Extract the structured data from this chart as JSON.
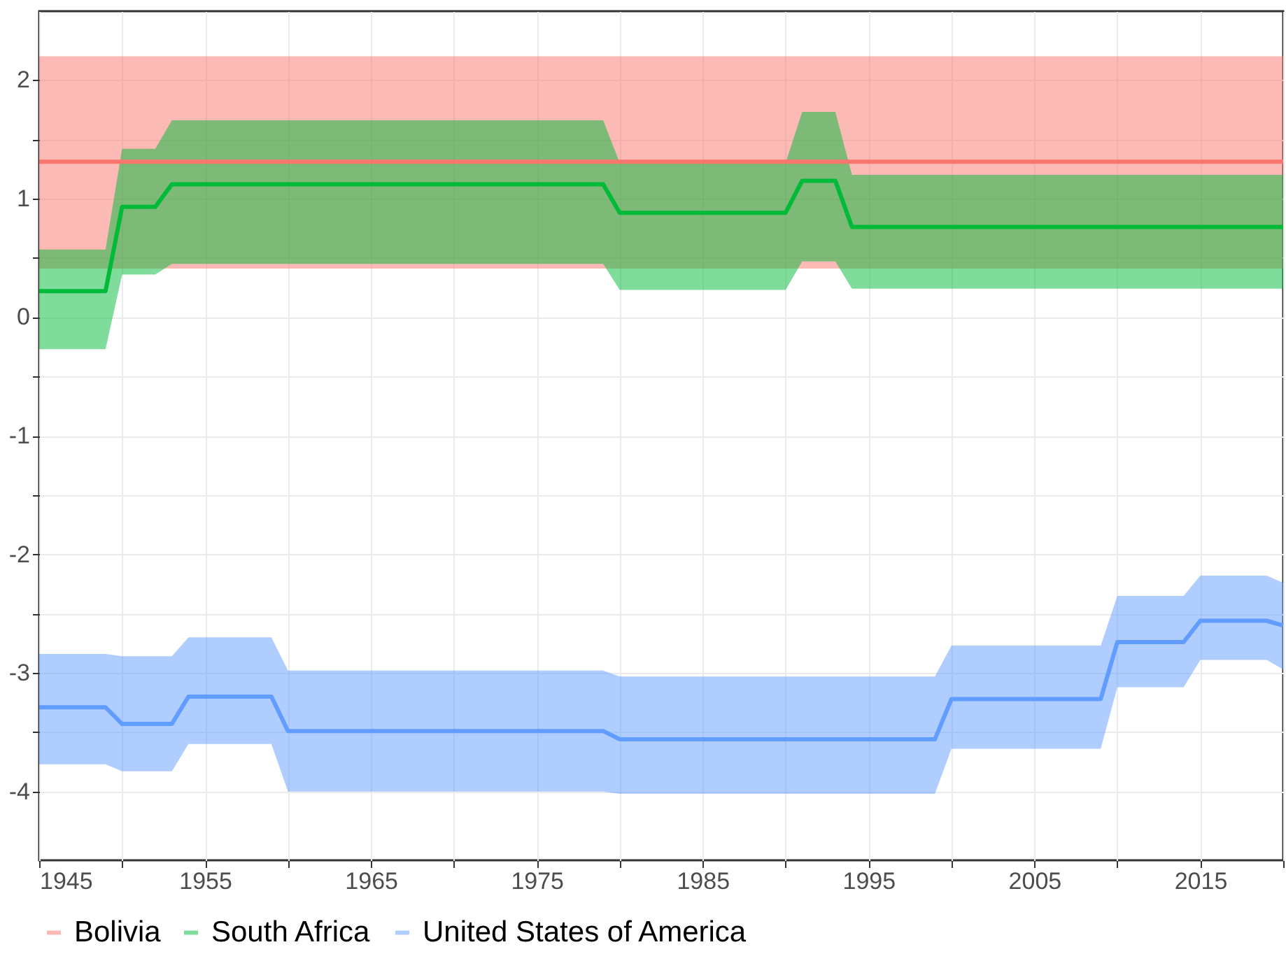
{
  "chart_data": {
    "type": "line",
    "xlim": [
      1945,
      2020
    ],
    "ylim": [
      -4.58,
      2.58
    ],
    "xticks": [
      1945,
      {
        "value": 1950,
        "label": null
      },
      1955,
      {
        "value": 1960,
        "label": null
      },
      1965,
      {
        "value": 1970,
        "label": null
      },
      1975,
      {
        "value": 1980,
        "label": null
      },
      1985,
      {
        "value": 1990,
        "label": null
      },
      1995,
      {
        "value": 2000,
        "label": null
      },
      2005,
      {
        "value": 2010,
        "label": null
      },
      2015,
      {
        "value": 2020,
        "label": null
      }
    ],
    "yticks": [
      -4,
      {
        "value": -3.5,
        "label": null
      },
      -3,
      {
        "value": -2.5,
        "label": null
      },
      -2,
      {
        "value": -1.5,
        "label": null
      },
      -1,
      {
        "value": -0.5,
        "label": null
      },
      0,
      {
        "value": 0.5,
        "label": null
      },
      1,
      {
        "value": 1.5,
        "label": null
      },
      2
    ],
    "grid": true,
    "legend": "bottom",
    "series": [
      {
        "name": "Bolivia",
        "color": "#f8766d",
        "x": [
          1945,
          2020
        ],
        "values": [
          1.31,
          1.31
        ],
        "lower": [
          0.41,
          0.41
        ],
        "upper": [
          2.2,
          2.2
        ]
      },
      {
        "name": "South Africa",
        "color": "#00ba38",
        "x": [
          1945,
          1949,
          1950,
          1952,
          1953,
          1979,
          1980,
          1990,
          1991,
          1993,
          1994,
          2020
        ],
        "values": [
          0.22,
          0.22,
          0.93,
          0.93,
          1.12,
          1.12,
          0.88,
          0.88,
          1.15,
          1.15,
          0.76,
          0.76
        ],
        "lower": [
          -0.27,
          -0.27,
          0.36,
          0.36,
          0.45,
          0.45,
          0.23,
          0.23,
          0.47,
          0.47,
          0.24,
          0.24
        ],
        "upper": [
          0.57,
          0.57,
          1.42,
          1.42,
          1.66,
          1.66,
          1.3,
          1.3,
          1.73,
          1.73,
          1.2,
          1.2
        ]
      },
      {
        "name": "United States of America",
        "color": "#619cff",
        "x": [
          1945,
          1949,
          1950,
          1953,
          1954,
          1959,
          1960,
          1979,
          1980,
          1999,
          2000,
          2009,
          2010,
          2014,
          2015,
          2019,
          2020
        ],
        "values": [
          -3.29,
          -3.29,
          -3.43,
          -3.43,
          -3.2,
          -3.2,
          -3.49,
          -3.49,
          -3.56,
          -3.56,
          -3.22,
          -3.22,
          -2.74,
          -2.74,
          -2.56,
          -2.56,
          -2.6
        ],
        "lower": [
          -3.77,
          -3.77,
          -3.83,
          -3.83,
          -3.6,
          -3.6,
          -4.0,
          -4.0,
          -4.02,
          -4.02,
          -3.64,
          -3.64,
          -3.12,
          -3.12,
          -2.89,
          -2.89,
          -2.97
        ],
        "upper": [
          -2.84,
          -2.84,
          -2.86,
          -2.86,
          -2.7,
          -2.7,
          -2.98,
          -2.98,
          -3.03,
          -3.03,
          -2.77,
          -2.77,
          -2.35,
          -2.35,
          -2.18,
          -2.18,
          -2.24
        ]
      }
    ]
  }
}
